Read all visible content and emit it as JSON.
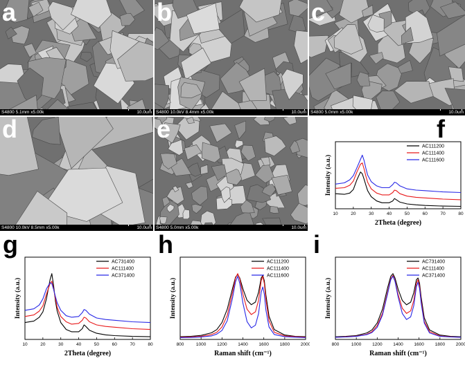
{
  "sem_panels": [
    {
      "label": "a",
      "info": "S4800 5.1mm x5.00k",
      "scale": "10.0um"
    },
    {
      "label": "b",
      "info": "S4800 10.0kV 8.4mm x5.00k",
      "scale": "10.0um"
    },
    {
      "label": "c",
      "info": "S4800 5.0mm x5.00k",
      "scale": "10.0um"
    },
    {
      "label": "d",
      "info": "S4800 10.0kV 8.5mm x5.00k",
      "scale": "10.0um"
    },
    {
      "label": "e",
      "info": "S4800 5.0mm x5.00k",
      "scale": "10.0um"
    }
  ],
  "chart_data": [
    {
      "label": "f",
      "type": "line",
      "xlabel": "2Theta (degree)",
      "ylabel": "Intensity (a.u.)",
      "xlim": [
        10,
        80
      ],
      "xticks": [
        10,
        20,
        30,
        40,
        50,
        60,
        70,
        80
      ],
      "series": [
        {
          "name": "AC111200",
          "color": "#000000",
          "x": [
            10,
            15,
            18,
            20,
            22,
            24,
            25,
            26,
            27,
            28,
            30,
            33,
            36,
            40,
            42,
            43,
            44,
            46,
            50,
            55,
            60,
            70,
            80
          ],
          "y": [
            2.5,
            2.4,
            2.6,
            3.2,
            4.8,
            6.1,
            5.8,
            4.9,
            3.9,
            3.0,
            2.0,
            1.3,
            1.0,
            1.0,
            1.3,
            1.7,
            1.5,
            1.1,
            0.8,
            0.65,
            0.55,
            0.45,
            0.4
          ]
        },
        {
          "name": "AC111400",
          "color": "#e8191a",
          "x": [
            10,
            15,
            18,
            20,
            22,
            24,
            25,
            26,
            27,
            28,
            30,
            33,
            36,
            40,
            42,
            43,
            44,
            46,
            50,
            55,
            60,
            70,
            80
          ],
          "y": [
            3.4,
            3.5,
            3.9,
            4.6,
            6.1,
            7.4,
            7.6,
            6.6,
            5.4,
            4.4,
            3.3,
            2.6,
            2.3,
            2.3,
            2.7,
            3.1,
            3.0,
            2.5,
            2.1,
            1.9,
            1.8,
            1.6,
            1.5
          ]
        },
        {
          "name": "AC111600",
          "color": "#2727e6",
          "x": [
            10,
            15,
            18,
            20,
            22,
            24,
            25,
            26,
            27,
            28,
            30,
            33,
            36,
            40,
            42,
            43,
            44,
            46,
            50,
            55,
            60,
            70,
            80
          ],
          "y": [
            4.1,
            4.3,
            4.8,
            5.5,
            6.8,
            8.2,
            8.9,
            8.0,
            6.7,
            5.6,
            4.5,
            3.8,
            3.5,
            3.5,
            4.0,
            4.4,
            4.3,
            3.8,
            3.3,
            3.1,
            3.0,
            2.8,
            2.7
          ]
        }
      ]
    },
    {
      "label": "g",
      "type": "line",
      "xlabel": "2Theta (degree)",
      "ylabel": "Intensity (a.u.)",
      "xlim": [
        10,
        80
      ],
      "xticks": [
        10,
        20,
        30,
        40,
        50,
        60,
        70,
        80
      ],
      "series": [
        {
          "name": "AC731400",
          "color": "#000000",
          "x": [
            10,
            15,
            18,
            20,
            22,
            24,
            25,
            26,
            27,
            28,
            30,
            33,
            36,
            40,
            42,
            43,
            44,
            46,
            50,
            55,
            60,
            70,
            80
          ],
          "y": [
            2.2,
            2.4,
            2.9,
            3.6,
            5.3,
            7.8,
            8.6,
            7.0,
            5.0,
            3.7,
            2.2,
            1.3,
            1.0,
            1.0,
            1.4,
            1.9,
            1.7,
            1.2,
            0.8,
            0.6,
            0.5,
            0.4,
            0.35
          ]
        },
        {
          "name": "AC111400",
          "color": "#e8191a",
          "x": [
            10,
            15,
            18,
            20,
            22,
            24,
            25,
            26,
            27,
            28,
            30,
            33,
            36,
            40,
            42,
            43,
            44,
            46,
            50,
            55,
            60,
            70,
            80
          ],
          "y": [
            3.0,
            3.2,
            3.7,
            4.4,
            5.9,
            7.3,
            7.6,
            6.6,
            5.3,
            4.2,
            3.0,
            2.3,
            2.0,
            2.1,
            2.5,
            2.9,
            2.8,
            2.3,
            1.9,
            1.7,
            1.6,
            1.4,
            1.3
          ]
        },
        {
          "name": "AC371400",
          "color": "#2727e6",
          "x": [
            10,
            15,
            18,
            20,
            22,
            24,
            25,
            26,
            27,
            28,
            30,
            33,
            36,
            40,
            42,
            43,
            44,
            46,
            50,
            55,
            60,
            70,
            80
          ],
          "y": [
            3.8,
            4.0,
            4.5,
            5.3,
            6.6,
            7.4,
            7.3,
            6.5,
            5.6,
            4.8,
            3.8,
            3.1,
            2.9,
            3.0,
            3.5,
            3.9,
            3.8,
            3.3,
            2.8,
            2.6,
            2.5,
            2.3,
            2.2
          ]
        }
      ]
    },
    {
      "label": "h",
      "type": "line",
      "xlabel": "Raman shift (cm⁻¹)",
      "ylabel": "Intensity (a.u.)",
      "xlim": [
        800,
        2000
      ],
      "xticks": [
        800,
        1000,
        1200,
        1400,
        1600,
        1800,
        2000
      ],
      "series": [
        {
          "name": "AC111200",
          "color": "#000000",
          "x": [
            800,
            900,
            1000,
            1100,
            1150,
            1200,
            1250,
            1300,
            1330,
            1350,
            1370,
            1400,
            1440,
            1480,
            1520,
            1550,
            1575,
            1590,
            1605,
            1620,
            1650,
            1700,
            1800,
            1900,
            2000
          ],
          "y": [
            0.3,
            0.35,
            0.45,
            0.75,
            1.1,
            1.9,
            3.4,
            5.7,
            7.0,
            7.3,
            6.9,
            5.7,
            4.4,
            3.9,
            4.2,
            5.3,
            6.9,
            7.2,
            6.6,
            5.0,
            2.6,
            1.1,
            0.5,
            0.35,
            0.3
          ]
        },
        {
          "name": "AC111400",
          "color": "#e8191a",
          "x": [
            800,
            900,
            1000,
            1100,
            1150,
            1200,
            1250,
            1300,
            1330,
            1350,
            1370,
            1400,
            1440,
            1480,
            1520,
            1550,
            1575,
            1590,
            1605,
            1620,
            1650,
            1700,
            1800,
            1900,
            2000
          ],
          "y": [
            0.25,
            0.28,
            0.35,
            0.55,
            0.8,
            1.4,
            2.7,
            5.2,
            6.9,
            7.4,
            6.8,
            5.1,
            3.4,
            2.8,
            3.1,
            4.4,
            6.6,
            7.1,
            6.3,
            4.5,
            2.1,
            0.8,
            0.4,
            0.3,
            0.25
          ]
        },
        {
          "name": "AC111600",
          "color": "#2727e6",
          "x": [
            800,
            900,
            1000,
            1100,
            1150,
            1200,
            1250,
            1300,
            1330,
            1350,
            1370,
            1400,
            1440,
            1480,
            1520,
            1550,
            1575,
            1590,
            1605,
            1620,
            1650,
            1700,
            1800,
            1900,
            2000
          ],
          "y": [
            0.2,
            0.22,
            0.28,
            0.4,
            0.6,
            1.0,
            2.1,
            4.6,
            6.5,
            7.1,
            6.3,
            4.1,
            2.0,
            1.3,
            1.6,
            2.9,
            5.3,
            5.9,
            5.1,
            3.3,
            1.4,
            0.55,
            0.3,
            0.25,
            0.2
          ]
        }
      ]
    },
    {
      "label": "i",
      "type": "line",
      "xlabel": "Raman shift (cm⁻¹)",
      "ylabel": "Intensity (a.u.)",
      "xlim": [
        800,
        2000
      ],
      "xticks": [
        800,
        1000,
        1200,
        1400,
        1600,
        1800,
        2000
      ],
      "series": [
        {
          "name": "AC731400",
          "color": "#000000",
          "x": [
            800,
            900,
            1000,
            1100,
            1150,
            1200,
            1250,
            1300,
            1330,
            1350,
            1370,
            1400,
            1440,
            1480,
            1520,
            1550,
            1575,
            1590,
            1605,
            1620,
            1650,
            1700,
            1800,
            1900,
            2000
          ],
          "y": [
            0.3,
            0.35,
            0.45,
            0.75,
            1.1,
            1.9,
            3.5,
            6.0,
            7.3,
            7.6,
            7.1,
            5.8,
            4.5,
            4.0,
            4.3,
            5.4,
            6.9,
            7.1,
            6.5,
            4.9,
            2.5,
            1.1,
            0.5,
            0.35,
            0.3
          ]
        },
        {
          "name": "AC111400",
          "color": "#e8191a",
          "x": [
            800,
            900,
            1000,
            1100,
            1150,
            1200,
            1250,
            1300,
            1330,
            1350,
            1370,
            1400,
            1440,
            1480,
            1520,
            1550,
            1575,
            1590,
            1605,
            1620,
            1650,
            1700,
            1800,
            1900,
            2000
          ],
          "y": [
            0.25,
            0.3,
            0.38,
            0.6,
            0.9,
            1.6,
            3.0,
            5.5,
            7.0,
            7.4,
            6.8,
            5.2,
            3.6,
            3.0,
            3.3,
            4.5,
            6.5,
            6.9,
            6.2,
            4.5,
            2.1,
            0.9,
            0.4,
            0.3,
            0.25
          ]
        },
        {
          "name": "AC371400",
          "color": "#2727e6",
          "x": [
            800,
            900,
            1000,
            1100,
            1150,
            1200,
            1250,
            1300,
            1330,
            1350,
            1370,
            1400,
            1440,
            1480,
            1520,
            1550,
            1575,
            1590,
            1605,
            1620,
            1650,
            1700,
            1800,
            1900,
            2000
          ],
          "y": [
            0.25,
            0.28,
            0.35,
            0.55,
            0.8,
            1.4,
            2.8,
            5.3,
            6.9,
            7.3,
            6.7,
            4.9,
            3.0,
            2.3,
            2.6,
            3.9,
            6.1,
            6.6,
            5.9,
            4.2,
            1.9,
            0.75,
            0.35,
            0.28,
            0.25
          ]
        }
      ]
    }
  ]
}
